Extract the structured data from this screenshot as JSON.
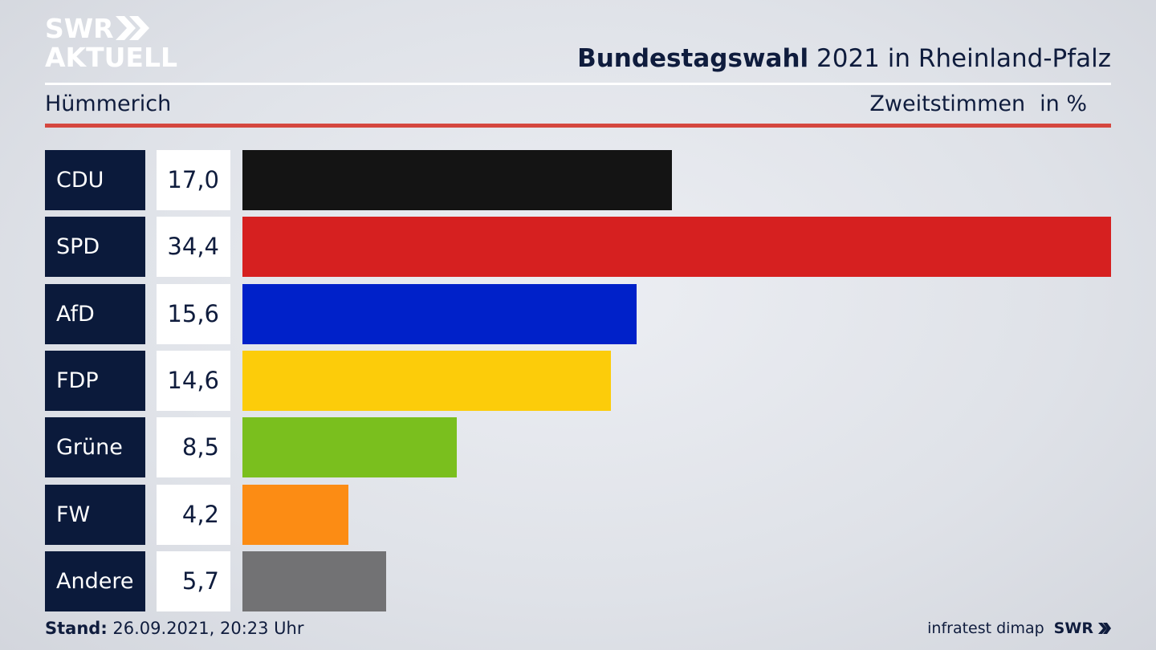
{
  "brand": {
    "line1": "SWR",
    "line2": "AKTUELL",
    "color": "#ffffff"
  },
  "header": {
    "title_bold": "Bundestagswahl",
    "title_rest": " 2021 in Rheinland-Pfalz",
    "location": "Hümmerich",
    "measure": "Zweitstimmen",
    "unit": "in %"
  },
  "footer": {
    "stand_label": "Stand:",
    "stand_value": " 26.09.2021, 20:23 Uhr",
    "source": "infratest dimap",
    "source_brand": "SWR"
  },
  "chart_data": {
    "type": "bar",
    "orientation": "horizontal",
    "title": "Bundestagswahl 2021 in Rheinland-Pfalz",
    "subtitle": "Hümmerich",
    "xlabel": "Zweitstimmen",
    "unit": "in %",
    "categories": [
      "CDU",
      "SPD",
      "AfD",
      "FDP",
      "Grüne",
      "FW",
      "Andere"
    ],
    "values": [
      17.0,
      34.4,
      15.6,
      14.6,
      8.5,
      4.2,
      5.7
    ],
    "value_labels": [
      "17,0",
      "34,4",
      "15,6",
      "14,6",
      "8,5",
      "4,2",
      "5,7"
    ],
    "colors": [
      "#141414",
      "#d62020",
      "#0021c9",
      "#fccc0a",
      "#7abf1e",
      "#fc8c14",
      "#727274"
    ],
    "xlim": [
      0,
      34.4
    ],
    "grid": false,
    "legend": "none"
  }
}
